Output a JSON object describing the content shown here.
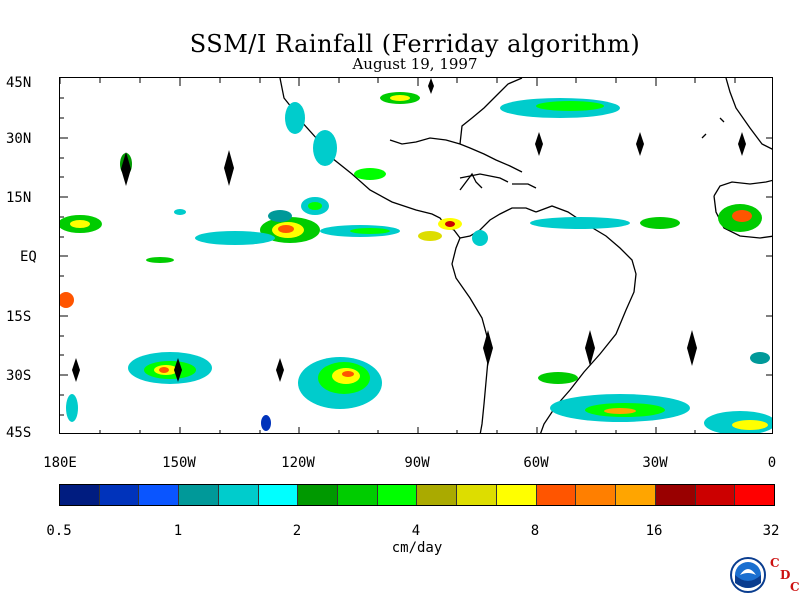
{
  "title": "SSM/I Rainfall (Ferriday algorithm)",
  "date": "August 19, 1997",
  "latitude_labels": [
    "45N",
    "30N",
    "15N",
    "EQ",
    "15S",
    "30S",
    "45S"
  ],
  "longitude_labels": [
    "180E",
    "150W",
    "120W",
    "90W",
    "60W",
    "30W",
    "0"
  ],
  "colorbar": {
    "colors": [
      "#001c80",
      "#0033bb",
      "#0a55ff",
      "#009999",
      "#00cccc",
      "#00ffff",
      "#009900",
      "#00cc00",
      "#00ff00",
      "#aaaa00",
      "#dddd00",
      "#ffff00",
      "#ff5500",
      "#ff7f00",
      "#ffa500",
      "#990000",
      "#cc0000",
      "#ff0000"
    ],
    "tick_labels": [
      "0.5",
      "1",
      "2",
      "4",
      "8",
      "16",
      "32"
    ],
    "units": "cm/day"
  },
  "logo": {
    "agency": "NOAA",
    "cdc_letters": [
      "C",
      "D",
      "C"
    ]
  }
}
